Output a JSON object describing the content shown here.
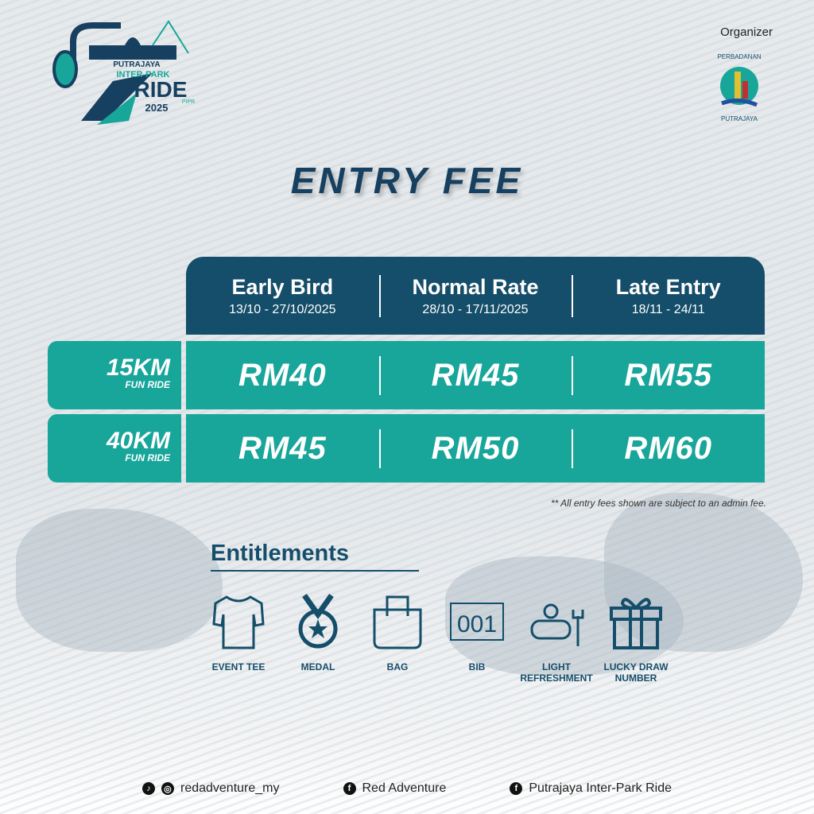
{
  "event_logo": {
    "lines": [
      "PUTRAJAYA",
      "INTER-PARK",
      "RIDE",
      "2025",
      "PIPR"
    ]
  },
  "organizer": {
    "label": "Organizer",
    "logo_text": [
      "PERBADANAN",
      "PUTRAJAYA"
    ]
  },
  "title": "ENTRY FEE",
  "columns": [
    {
      "name": "Early Bird",
      "dates": "13/10 - 27/10/2025"
    },
    {
      "name": "Normal Rate",
      "dates": "28/10 - 17/11/2025"
    },
    {
      "name": "Late Entry",
      "dates": "18/11 - 24/11"
    }
  ],
  "rows": [
    {
      "distance": "15KM",
      "type": "FUN RIDE",
      "prices": [
        "RM40",
        "RM45",
        "RM55"
      ]
    },
    {
      "distance": "40KM",
      "type": "FUN RIDE",
      "prices": [
        "RM45",
        "RM50",
        "RM60"
      ]
    }
  ],
  "note": "** All entry fees shown are subject to an admin fee.",
  "entitlements": {
    "heading": "Entitlements",
    "items": [
      {
        "label": "EVENT TEE",
        "icon": "tshirt-icon"
      },
      {
        "label": "MEDAL",
        "icon": "medal-icon"
      },
      {
        "label": "BAG",
        "icon": "bag-icon"
      },
      {
        "label": "BIB",
        "icon": "bib-icon",
        "icon_text": "001"
      },
      {
        "label": "LIGHT REFRESHMENT",
        "icon": "refreshment-icon"
      },
      {
        "label": "LUCKY DRAW NUMBER",
        "icon": "gift-icon"
      }
    ]
  },
  "footer": [
    {
      "text": "redadventure_my",
      "icons": [
        "tiktok-icon",
        "instagram-icon"
      ]
    },
    {
      "text": "Red Adventure",
      "icons": [
        "facebook-icon"
      ]
    },
    {
      "text": "Putrajaya Inter-Park Ride",
      "icons": [
        "facebook-icon"
      ]
    }
  ],
  "colors": {
    "navy": "#154e6a",
    "teal": "#18a59a",
    "title": "#173f60"
  }
}
